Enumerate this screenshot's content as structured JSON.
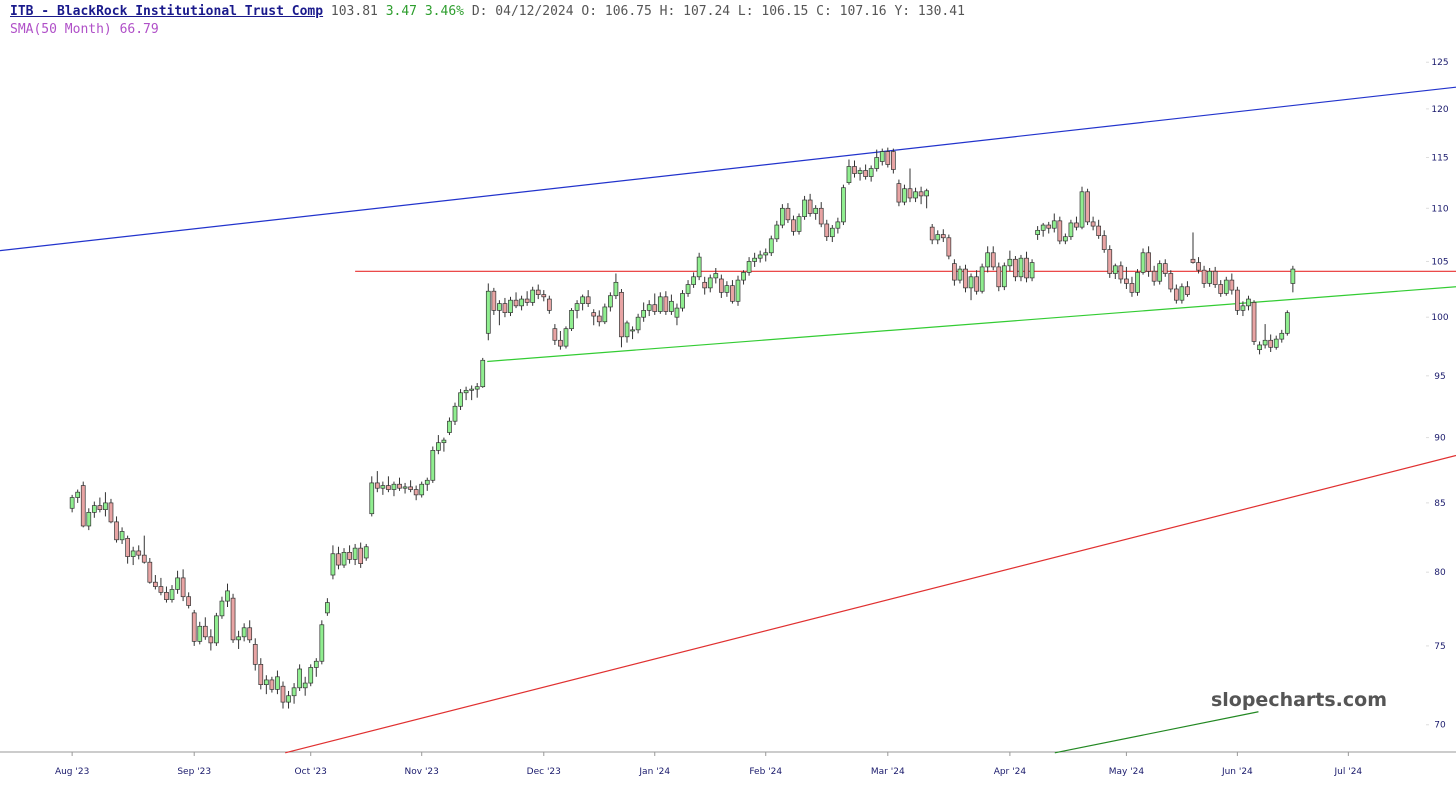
{
  "header": {
    "symbol": "ITB - BlackRock Institutional Trust Comp",
    "last": "103.81",
    "change": "3.47",
    "change_pct": "3.46%",
    "details": "D: 04/12/2024 O: 106.75 H: 107.24 L: 106.15 C: 107.16 Y: 130.41",
    "sma": "SMA(50 Month) 66.79"
  },
  "chart_data": {
    "type": "candlestick",
    "watermark": "slopecharts.com",
    "log_y": true,
    "up_color": "#90ee90",
    "down_color": "#e8a4a4",
    "wick_color": "#333333",
    "xlim": [
      -13,
      249.4
    ],
    "ylim": [
      68.35,
      126.9
    ],
    "yticks": [
      70,
      75,
      80,
      85,
      90,
      95,
      100,
      105,
      110,
      115,
      120,
      125
    ],
    "xticks": [
      {
        "value": 0,
        "label": "Aug '23"
      },
      {
        "value": 22,
        "label": "Sep '23"
      },
      {
        "value": 43,
        "label": "Oct '23"
      },
      {
        "value": 63,
        "label": "Nov '23"
      },
      {
        "value": 85,
        "label": "Dec '23"
      },
      {
        "value": 105,
        "label": "Jan '24"
      },
      {
        "value": 125,
        "label": "Feb '24"
      },
      {
        "value": 147,
        "label": "Mar '24"
      },
      {
        "value": 169,
        "label": "Apr '24"
      },
      {
        "value": 190,
        "label": "May '24"
      },
      {
        "value": 210,
        "label": "Jun '24"
      },
      {
        "value": 230,
        "label": "Jul '24"
      }
    ],
    "trendlines": [
      {
        "color": "#2233cc",
        "points": [
          [
            -13,
            106.0
          ],
          [
            249.4,
            122.3
          ]
        ]
      },
      {
        "color": "#e83030",
        "points": [
          [
            51,
            104.1
          ],
          [
            249.4,
            104.1
          ]
        ]
      },
      {
        "color": "#33cc33",
        "points": [
          [
            74.8,
            96.2
          ],
          [
            249.4,
            102.7
          ]
        ]
      },
      {
        "color": "#e03030",
        "points": [
          [
            38.4,
            68.3
          ],
          [
            249.4,
            88.6
          ]
        ]
      },
      {
        "color": "#228822",
        "points": [
          [
            177.1,
            68.3
          ],
          [
            213.8,
            70.8
          ]
        ]
      }
    ],
    "ohlc": [
      [
        84.6,
        85.6,
        84.3,
        85.4
      ],
      [
        85.4,
        86.0,
        85.0,
        85.8
      ],
      [
        86.3,
        86.6,
        83.2,
        83.3
      ],
      [
        83.3,
        84.6,
        83.0,
        84.3
      ],
      [
        84.3,
        85.1,
        83.9,
        84.8
      ],
      [
        84.8,
        85.4,
        84.3,
        84.5
      ],
      [
        84.5,
        85.8,
        84.0,
        85.0
      ],
      [
        85.0,
        85.3,
        83.5,
        83.6
      ],
      [
        83.6,
        84.0,
        82.1,
        82.3
      ],
      [
        82.3,
        83.2,
        82.0,
        82.9
      ],
      [
        82.4,
        82.6,
        80.6,
        81.1
      ],
      [
        81.1,
        81.8,
        80.5,
        81.5
      ],
      [
        81.5,
        81.9,
        80.9,
        81.2
      ],
      [
        81.2,
        82.6,
        80.6,
        80.7
      ],
      [
        80.7,
        81.0,
        79.2,
        79.3
      ],
      [
        79.3,
        79.8,
        78.8,
        79.0
      ],
      [
        79.0,
        79.6,
        78.4,
        78.6
      ],
      [
        78.6,
        79.0,
        77.9,
        78.1
      ],
      [
        78.1,
        79.1,
        77.9,
        78.8
      ],
      [
        78.8,
        80.1,
        78.5,
        79.6
      ],
      [
        79.6,
        80.2,
        78.0,
        78.3
      ],
      [
        78.3,
        78.6,
        77.5,
        77.7
      ],
      [
        77.2,
        77.4,
        75.0,
        75.3
      ],
      [
        75.3,
        76.6,
        75.1,
        76.3
      ],
      [
        76.3,
        76.9,
        75.4,
        75.6
      ],
      [
        75.6,
        76.1,
        74.7,
        75.2
      ],
      [
        75.2,
        77.2,
        75.0,
        77.0
      ],
      [
        77.0,
        78.3,
        76.8,
        78.0
      ],
      [
        78.0,
        79.2,
        77.6,
        78.7
      ],
      [
        78.2,
        78.5,
        75.2,
        75.4
      ],
      [
        75.4,
        76.0,
        74.8,
        75.6
      ],
      [
        75.6,
        76.5,
        75.3,
        76.2
      ],
      [
        76.2,
        76.7,
        75.2,
        75.4
      ],
      [
        75.1,
        75.5,
        73.4,
        73.8
      ],
      [
        73.8,
        74.2,
        72.2,
        72.5
      ],
      [
        72.5,
        73.1,
        71.9,
        72.8
      ],
      [
        72.8,
        73.0,
        72.0,
        72.2
      ],
      [
        72.2,
        73.4,
        71.9,
        73.0
      ],
      [
        72.4,
        72.7,
        71.0,
        71.4
      ],
      [
        71.4,
        72.1,
        71.0,
        71.8
      ],
      [
        71.8,
        72.6,
        71.3,
        72.3
      ],
      [
        72.3,
        73.8,
        72.1,
        73.5
      ],
      [
        72.3,
        73.0,
        71.8,
        72.6
      ],
      [
        72.6,
        73.8,
        72.4,
        73.6
      ],
      [
        73.6,
        74.2,
        73.0,
        74.0
      ],
      [
        74.0,
        76.7,
        73.8,
        76.4
      ],
      [
        77.2,
        78.2,
        77.0,
        77.9
      ],
      [
        79.8,
        81.9,
        79.5,
        81.3
      ],
      [
        81.3,
        81.8,
        80.2,
        80.5
      ],
      [
        80.5,
        81.7,
        80.3,
        81.4
      ],
      [
        81.4,
        81.9,
        80.6,
        80.9
      ],
      [
        80.9,
        82.0,
        80.5,
        81.7
      ],
      [
        81.7,
        82.1,
        80.3,
        80.6
      ],
      [
        81.0,
        82.0,
        80.8,
        81.8
      ],
      [
        84.2,
        87.0,
        84.0,
        86.5
      ],
      [
        86.5,
        87.4,
        85.8,
        86.1
      ],
      [
        86.1,
        86.6,
        85.6,
        86.3
      ],
      [
        86.3,
        87.0,
        85.8,
        86.0
      ],
      [
        86.0,
        86.6,
        85.5,
        86.4
      ],
      [
        86.4,
        86.9,
        85.9,
        86.1
      ],
      [
        86.1,
        86.5,
        85.7,
        86.2
      ],
      [
        86.2,
        86.7,
        85.8,
        86.0
      ],
      [
        86.0,
        86.3,
        85.2,
        85.6
      ],
      [
        85.6,
        86.6,
        85.4,
        86.4
      ],
      [
        86.4,
        86.9,
        85.9,
        86.7
      ],
      [
        86.7,
        89.3,
        86.5,
        89.0
      ],
      [
        89.0,
        90.2,
        88.7,
        89.6
      ],
      [
        89.6,
        90.0,
        88.9,
        89.8
      ],
      [
        90.4,
        91.6,
        90.2,
        91.3
      ],
      [
        91.3,
        92.8,
        91.0,
        92.5
      ],
      [
        92.5,
        93.9,
        92.2,
        93.6
      ],
      [
        93.6,
        94.1,
        93.0,
        93.8
      ],
      [
        93.8,
        94.2,
        93.0,
        93.9
      ],
      [
        93.9,
        94.4,
        93.2,
        94.1
      ],
      [
        94.1,
        96.5,
        94.0,
        96.3
      ],
      [
        98.6,
        103.0,
        98.0,
        102.3
      ],
      [
        102.3,
        102.6,
        100.2,
        100.6
      ],
      [
        100.6,
        101.5,
        99.3,
        101.2
      ],
      [
        101.2,
        101.7,
        100.0,
        100.4
      ],
      [
        100.4,
        101.8,
        100.1,
        101.5
      ],
      [
        101.5,
        102.2,
        100.8,
        101.0
      ],
      [
        101.0,
        101.9,
        100.6,
        101.6
      ],
      [
        101.6,
        102.3,
        101.0,
        101.3
      ],
      [
        101.3,
        102.7,
        101.0,
        102.4
      ],
      [
        102.4,
        102.9,
        101.6,
        102.0
      ],
      [
        102.0,
        102.4,
        101.4,
        101.8
      ],
      [
        101.6,
        101.9,
        100.3,
        100.6
      ],
      [
        99.0,
        99.4,
        97.6,
        98.0
      ],
      [
        98.0,
        98.8,
        97.2,
        97.5
      ],
      [
        97.5,
        99.2,
        97.3,
        99.0
      ],
      [
        99.0,
        100.8,
        98.8,
        100.6
      ],
      [
        100.6,
        101.5,
        99.9,
        101.2
      ],
      [
        101.2,
        102.0,
        100.6,
        101.8
      ],
      [
        101.8,
        102.4,
        100.9,
        101.2
      ],
      [
        100.4,
        100.7,
        99.3,
        100.1
      ],
      [
        100.1,
        100.6,
        99.2,
        99.6
      ],
      [
        99.6,
        101.2,
        99.4,
        100.9
      ],
      [
        100.9,
        102.2,
        100.5,
        101.9
      ],
      [
        101.9,
        103.9,
        101.6,
        103.1
      ],
      [
        102.2,
        102.5,
        97.4,
        98.3
      ],
      [
        98.3,
        99.7,
        97.8,
        99.5
      ],
      [
        98.8,
        99.2,
        98.1,
        98.9
      ],
      [
        98.9,
        100.3,
        98.6,
        100.0
      ],
      [
        100.0,
        101.3,
        99.6,
        100.6
      ],
      [
        100.6,
        101.5,
        100.1,
        101.1
      ],
      [
        101.1,
        102.1,
        100.2,
        100.5
      ],
      [
        100.5,
        102.2,
        100.3,
        101.8
      ],
      [
        101.8,
        102.3,
        100.2,
        100.5
      ],
      [
        100.5,
        102.0,
        100.2,
        101.4
      ],
      [
        100.0,
        101.2,
        99.3,
        100.8
      ],
      [
        100.8,
        102.4,
        100.5,
        102.1
      ],
      [
        102.1,
        103.3,
        101.8,
        102.9
      ],
      [
        102.9,
        104.0,
        102.6,
        103.6
      ],
      [
        103.6,
        105.8,
        103.3,
        105.4
      ],
      [
        103.1,
        103.6,
        102.0,
        102.6
      ],
      [
        102.6,
        103.8,
        102.2,
        103.5
      ],
      [
        103.5,
        104.4,
        103.0,
        103.9
      ],
      [
        103.4,
        103.8,
        101.7,
        102.2
      ],
      [
        102.2,
        103.2,
        101.8,
        102.8
      ],
      [
        102.8,
        103.3,
        101.2,
        101.4
      ],
      [
        101.4,
        103.7,
        101.0,
        103.3
      ],
      [
        103.3,
        104.2,
        102.9,
        104.0
      ],
      [
        104.0,
        105.4,
        103.7,
        105.0
      ],
      [
        105.0,
        105.8,
        104.5,
        105.3
      ],
      [
        105.3,
        106.0,
        104.9,
        105.6
      ],
      [
        105.6,
        106.2,
        105.0,
        105.8
      ],
      [
        105.8,
        107.4,
        105.5,
        107.1
      ],
      [
        107.1,
        108.8,
        106.8,
        108.4
      ],
      [
        108.4,
        110.4,
        108.1,
        110.0
      ],
      [
        110.0,
        110.5,
        108.6,
        108.9
      ],
      [
        108.9,
        109.3,
        107.4,
        107.8
      ],
      [
        107.8,
        109.5,
        107.5,
        109.2
      ],
      [
        109.2,
        111.2,
        108.9,
        110.8
      ],
      [
        110.8,
        111.4,
        109.2,
        109.5
      ],
      [
        109.5,
        110.3,
        108.9,
        110.0
      ],
      [
        110.0,
        110.6,
        108.2,
        108.5
      ],
      [
        108.5,
        108.9,
        106.9,
        107.3
      ],
      [
        107.3,
        108.4,
        106.8,
        108.1
      ],
      [
        108.1,
        109.1,
        107.6,
        108.7
      ],
      [
        108.7,
        112.3,
        108.4,
        112.0
      ],
      [
        112.5,
        114.8,
        112.3,
        114.1
      ],
      [
        114.1,
        114.7,
        113.0,
        113.4
      ],
      [
        113.4,
        114.0,
        112.7,
        113.7
      ],
      [
        113.7,
        114.3,
        112.8,
        113.1
      ],
      [
        113.1,
        114.2,
        112.6,
        113.9
      ],
      [
        113.9,
        115.8,
        113.6,
        115.0
      ],
      [
        114.6,
        115.9,
        114.2,
        115.6
      ],
      [
        115.6,
        116.0,
        114.0,
        114.3
      ],
      [
        115.6,
        115.9,
        113.4,
        113.8
      ],
      [
        112.4,
        112.8,
        110.2,
        110.6
      ],
      [
        110.6,
        112.3,
        110.3,
        111.9
      ],
      [
        111.9,
        113.9,
        110.6,
        111.0
      ],
      [
        111.0,
        112.0,
        110.6,
        111.6
      ],
      [
        111.6,
        112.1,
        110.4,
        111.2
      ],
      [
        111.2,
        111.9,
        110.0,
        111.7
      ],
      [
        108.2,
        108.5,
        106.6,
        107.0
      ],
      [
        107.0,
        107.9,
        106.6,
        107.5
      ],
      [
        107.5,
        108.0,
        106.8,
        107.2
      ],
      [
        107.2,
        107.5,
        105.2,
        105.5
      ],
      [
        104.8,
        105.2,
        102.8,
        103.3
      ],
      [
        103.3,
        104.6,
        103.0,
        104.3
      ],
      [
        104.3,
        104.7,
        102.2,
        102.6
      ],
      [
        102.6,
        103.9,
        101.5,
        103.6
      ],
      [
        103.6,
        104.2,
        102.0,
        102.3
      ],
      [
        102.3,
        104.8,
        102.1,
        104.5
      ],
      [
        104.5,
        106.4,
        104.0,
        105.8
      ],
      [
        105.8,
        106.4,
        104.2,
        104.5
      ],
      [
        104.5,
        104.9,
        102.3,
        102.7
      ],
      [
        102.7,
        104.9,
        102.4,
        104.6
      ],
      [
        104.6,
        106.0,
        104.1,
        105.2
      ],
      [
        105.2,
        105.5,
        103.2,
        103.6
      ],
      [
        103.6,
        105.6,
        103.2,
        105.3
      ],
      [
        105.3,
        105.9,
        103.1,
        103.5
      ],
      [
        103.5,
        105.2,
        103.2,
        104.9
      ],
      [
        107.5,
        108.3,
        107.0,
        107.9
      ],
      [
        107.9,
        108.6,
        107.3,
        108.4
      ],
      [
        108.4,
        108.7,
        107.6,
        108.1
      ],
      [
        108.1,
        109.5,
        107.7,
        108.8
      ],
      [
        108.8,
        109.2,
        106.6,
        106.9
      ],
      [
        106.9,
        107.6,
        106.6,
        107.3
      ],
      [
        107.3,
        108.9,
        107.0,
        108.6
      ],
      [
        108.6,
        109.2,
        107.9,
        108.2
      ],
      [
        108.2,
        112.1,
        108.0,
        111.6
      ],
      [
        111.6,
        111.9,
        108.4,
        108.7
      ],
      [
        108.7,
        109.2,
        107.9,
        108.3
      ],
      [
        108.3,
        108.9,
        107.1,
        107.4
      ],
      [
        107.4,
        107.9,
        105.8,
        106.1
      ],
      [
        106.1,
        106.5,
        103.5,
        103.9
      ],
      [
        103.9,
        104.8,
        103.4,
        104.6
      ],
      [
        104.6,
        105.0,
        103.0,
        103.4
      ],
      [
        103.4,
        104.5,
        102.5,
        103.0
      ],
      [
        103.0,
        103.6,
        101.8,
        102.2
      ],
      [
        102.2,
        104.3,
        101.9,
        104.0
      ],
      [
        104.0,
        106.2,
        103.8,
        105.8
      ],
      [
        105.8,
        106.4,
        103.6,
        104.1
      ],
      [
        104.1,
        104.6,
        102.8,
        103.2
      ],
      [
        103.2,
        105.1,
        102.9,
        104.8
      ],
      [
        104.8,
        105.2,
        103.6,
        103.9
      ],
      [
        103.9,
        104.2,
        102.2,
        102.5
      ],
      [
        102.5,
        102.9,
        101.2,
        101.5
      ],
      [
        101.5,
        103.0,
        101.2,
        102.7
      ],
      [
        102.7,
        103.2,
        101.8,
        102.0
      ],
      [
        105.2,
        107.7,
        104.8,
        104.9
      ],
      [
        104.9,
        105.4,
        103.9,
        104.2
      ],
      [
        104.2,
        104.6,
        102.6,
        103.0
      ],
      [
        103.0,
        104.4,
        102.7,
        104.1
      ],
      [
        104.1,
        104.5,
        102.6,
        102.9
      ],
      [
        102.9,
        103.3,
        101.8,
        102.1
      ],
      [
        102.1,
        103.6,
        101.9,
        103.3
      ],
      [
        103.3,
        103.9,
        102.0,
        102.4
      ],
      [
        102.4,
        102.7,
        100.2,
        100.6
      ],
      [
        100.6,
        101.4,
        100.1,
        101.0
      ],
      [
        101.0,
        101.9,
        100.6,
        101.6
      ],
      [
        101.3,
        101.5,
        97.6,
        97.9
      ],
      [
        97.2,
        97.9,
        96.8,
        97.6
      ],
      [
        97.6,
        99.4,
        97.3,
        98.0
      ],
      [
        98.0,
        98.5,
        97.0,
        97.4
      ],
      [
        97.4,
        98.4,
        97.2,
        98.1
      ],
      [
        98.1,
        98.9,
        97.8,
        98.6
      ],
      [
        98.6,
        100.6,
        98.4,
        100.4
      ],
      [
        103.0,
        104.6,
        102.2,
        104.3
      ]
    ]
  }
}
